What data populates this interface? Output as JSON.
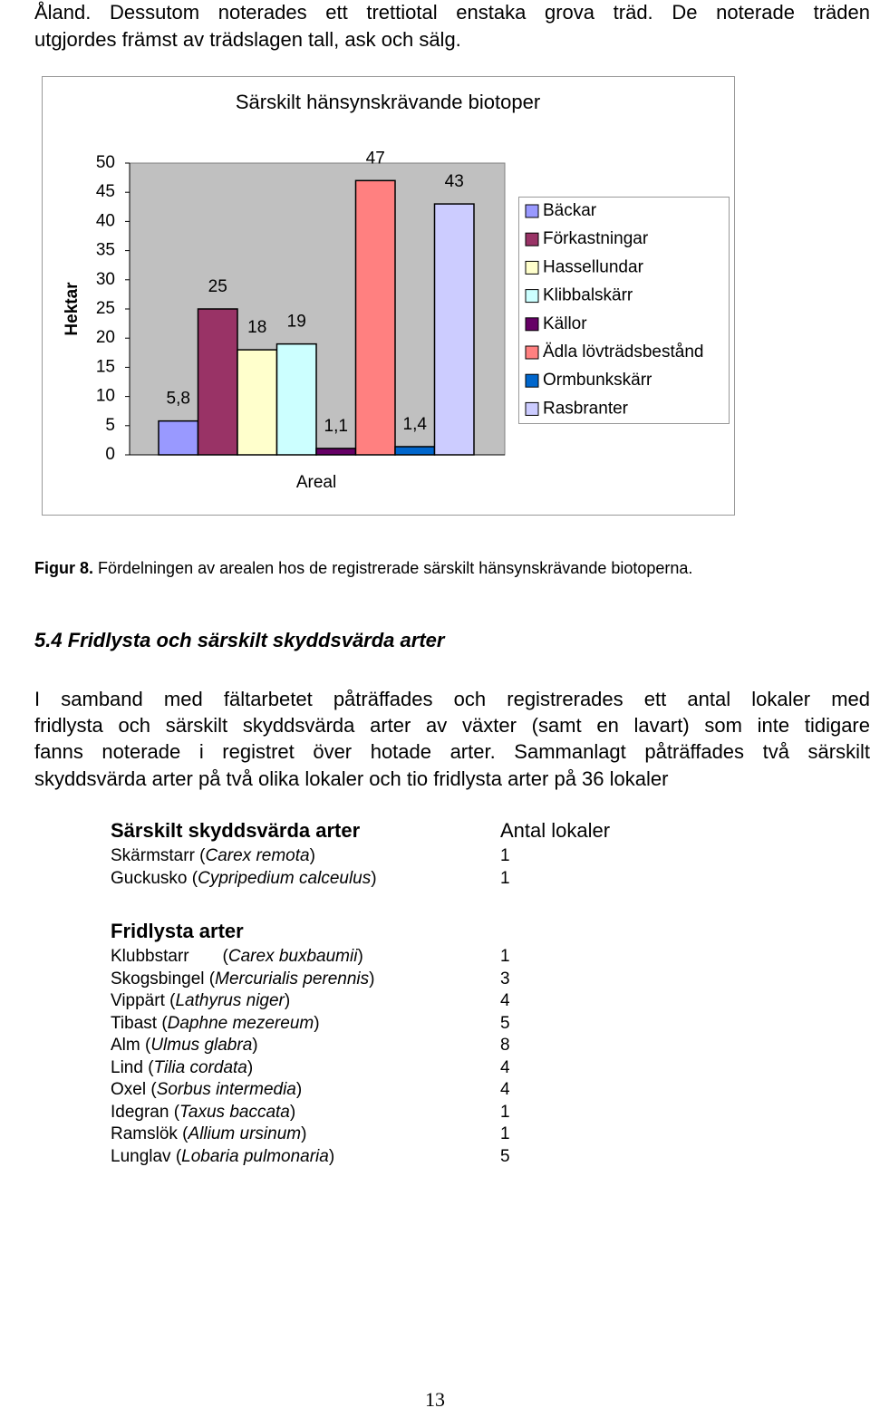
{
  "intro": {
    "lines": [
      "Åland. Dessutom noterades ett trettiotal enstaka grova träd. De noterade träden",
      "utgjordes främst av trädslagen tall, ask och sälg."
    ]
  },
  "chart_data": {
    "type": "bar",
    "title": "Särskilt hänsynskrävande biotoper",
    "y_label": "Hektar",
    "x_label": "Areal",
    "categories": [
      "Areal"
    ],
    "series": [
      {
        "name": "Bäckar",
        "color": "#9999ff",
        "values": [
          5.8
        ],
        "value_labels": [
          "5,8"
        ]
      },
      {
        "name": "Förkastningar",
        "color": "#993366",
        "values": [
          25
        ]
      },
      {
        "name": "Hassellundar",
        "color": "#ffffcc",
        "values": [
          18
        ]
      },
      {
        "name": "Klibbalskärr",
        "color": "#ccffff",
        "values": [
          19
        ]
      },
      {
        "name": "Källor",
        "color": "#660066",
        "values": [
          1.1
        ],
        "value_labels": [
          "1,1"
        ]
      },
      {
        "name": "Ädla lövträdsbestånd",
        "color": "#ff8080",
        "values": [
          47
        ]
      },
      {
        "name": "Ormbunkskärr",
        "color": "#0066cc",
        "values": [
          1.4
        ],
        "value_labels": [
          "1,4"
        ]
      },
      {
        "name": "Rasbranter",
        "color": "#ccccff",
        "values": [
          43
        ]
      }
    ],
    "ylim": [
      0,
      50
    ],
    "yticks": [
      0,
      5,
      10,
      15,
      20,
      25,
      30,
      35,
      40,
      45,
      50
    ],
    "grid": false,
    "legend": "right",
    "plot_background": "#c0c0c0"
  },
  "caption": {
    "label": "Figur 8.",
    "text": " Fördelningen av arealen hos de registrerade särskilt hänsynskrävande biotoperna."
  },
  "heading": "5.4 Fridlysta och särskilt skyddsvärda arter",
  "paragraph": {
    "lines": [
      "I samband med fältarbetet påträffades och registrerades ett antal lokaler med",
      "fridlysta och särskilt skyddsvärda arter av växter (samt en lavart) som inte tidigare",
      "fanns noterade i registret över hotade arter. Sammanlagt påträffades två särskilt",
      "skyddsvärda arter på två olika lokaler och tio fridlysta arter på 36 lokaler"
    ]
  },
  "table": {
    "sections": [
      {
        "title": "Särskilt skyddsvärda arter",
        "count_header": "Antal lokaler",
        "rows": [
          {
            "pre": "Skärmstarr (",
            "latin": "Carex remota",
            "post": ")",
            "count": 1
          },
          {
            "pre": "Guckusko (",
            "latin": "Cypripedium calceulus",
            "post": ")",
            "count": 1
          }
        ]
      },
      {
        "title": "Fridlysta arter",
        "rows": [
          {
            "pre": "Klubbstarr       (",
            "latin": "Carex buxbaumii",
            "post": ")",
            "count": 1
          },
          {
            "pre": "Skogsbingel (",
            "latin": "Mercurialis perennis",
            "post": ")",
            "count": 3
          },
          {
            "pre": "Vippärt (",
            "latin": "Lathyrus niger",
            "post": ")",
            "count": 4
          },
          {
            "pre": "Tibast (",
            "latin": "Daphne mezereum",
            "post": ")",
            "count": 5
          },
          {
            "pre": "Alm (",
            "latin": "Ulmus glabra",
            "post": ")",
            "count": 8
          },
          {
            "pre": "Lind (",
            "latin": "Tilia cordata",
            "post": ")",
            "count": 4
          },
          {
            "pre": "Oxel (",
            "latin": "Sorbus intermedia",
            "post": ")",
            "count": 4
          },
          {
            "pre": "Idegran (",
            "latin": "Taxus baccata",
            "post": ")",
            "count": 1
          },
          {
            "pre": "Ramslök (",
            "latin": "Allium ursinum",
            "post": ")",
            "count": 1
          },
          {
            "pre": "Lunglav (",
            "latin": "Lobaria pulmonaria",
            "post": ")",
            "count": 5
          }
        ]
      }
    ]
  },
  "page_number": "13"
}
